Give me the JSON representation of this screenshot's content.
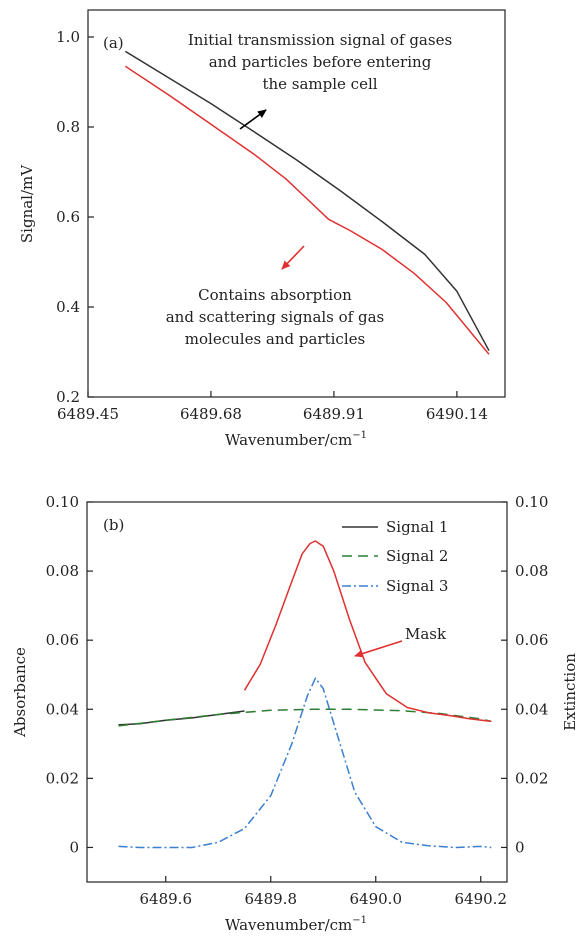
{
  "chart_data": [
    {
      "type": "line",
      "panel_label": "(a)",
      "xlabel": "Wavenumber/cm",
      "xlabel_sup": "−1",
      "ylabel": "Signal/mV",
      "xlim": [
        6489.45,
        6490.23
      ],
      "ylim": [
        0.2,
        1.06
      ],
      "x_ticks": [
        6489.45,
        6489.68,
        6489.91,
        6490.14
      ],
      "x_tick_labels": [
        "6489.45",
        "6489.68",
        "6489.91",
        "6490.14"
      ],
      "y_ticks": [
        0.2,
        0.4,
        0.6,
        0.8,
        1.0
      ],
      "y_tick_labels": [
        "0.2",
        "0.4",
        "0.6",
        "0.8",
        "1.0"
      ],
      "grid": false,
      "series": [
        {
          "color": "#333333",
          "x": [
            6489.52,
            6489.6,
            6489.68,
            6489.76,
            6489.84,
            6489.92,
            6490.0,
            6490.08,
            6490.14,
            6490.2
          ],
          "y": [
            0.968,
            0.91,
            0.852,
            0.79,
            0.727,
            0.66,
            0.59,
            0.517,
            0.435,
            0.303
          ]
        },
        {
          "color": "#e03030",
          "x": [
            6489.52,
            6489.6,
            6489.68,
            6489.76,
            6489.82,
            6489.86,
            6489.9,
            6489.94,
            6490.0,
            6490.06,
            6490.12,
            6490.2
          ],
          "y": [
            0.935,
            0.872,
            0.806,
            0.74,
            0.685,
            0.64,
            0.595,
            0.57,
            0.528,
            0.475,
            0.41,
            0.295
          ]
        }
      ],
      "annotations": [
        {
          "lines": [
            "Initial transmission signal of gases",
            "and particles before entering",
            "the sample cell"
          ],
          "arrow_color": "#000000"
        },
        {
          "lines": [
            "Contains absorption",
            "and scattering signals of gas",
            "molecules and particles"
          ],
          "arrow_color": "#e03030"
        }
      ]
    },
    {
      "type": "line",
      "panel_label": "(b)",
      "xlabel": "Wavenumber/cm",
      "xlabel_sup": "−1",
      "ylabel": "Absorbance",
      "y2label": "Extinction",
      "y2_color": "#2e8b2e",
      "xlim": [
        6489.45,
        6490.25
      ],
      "ylim": [
        -0.01,
        0.1
      ],
      "y2lim": [
        -0.01,
        0.1
      ],
      "x_ticks": [
        6489.6,
        6489.8,
        6490.0,
        6490.2
      ],
      "x_tick_labels": [
        "6489.6",
        "6489.8",
        "6490.0",
        "6490.2"
      ],
      "y_ticks": [
        0,
        0.02,
        0.04,
        0.06,
        0.08,
        0.1
      ],
      "y_tick_labels": [
        "0",
        "0.02",
        "0.04",
        "0.06",
        "0.08",
        "0.10"
      ],
      "y2_ticks": [
        0,
        0.02,
        0.04,
        0.06,
        0.08,
        0.1
      ],
      "y2_tick_labels": [
        "0",
        "0.02",
        "0.04",
        "0.06",
        "0.08",
        "0.10"
      ],
      "grid": false,
      "legend": [
        "Signal 1",
        "Signal 2",
        "Signal 3"
      ],
      "legend_placement": "top-right",
      "series": [
        {
          "name": "Signal 1",
          "color": "#333333",
          "dash": "",
          "x": [
            6489.51,
            6489.55,
            6489.6,
            6489.65,
            6489.7,
            6489.75
          ],
          "y": [
            0.0355,
            0.0358,
            0.0368,
            0.0375,
            0.0385,
            0.0395
          ]
        },
        {
          "name": "Signal 2",
          "color": "#2e7d32",
          "dash": "10,6",
          "x": [
            6489.51,
            6489.6,
            6489.7,
            6489.8,
            6489.88,
            6489.95,
            6490.05,
            6490.12,
            6490.2,
            6490.22
          ],
          "y": [
            0.0352,
            0.0368,
            0.0385,
            0.0397,
            0.04,
            0.04,
            0.0396,
            0.0388,
            0.0372,
            0.0365
          ]
        },
        {
          "name": "Signal 3",
          "color": "#3a7fd0",
          "dash": "9,3,2,3",
          "x": [
            6489.51,
            6489.55,
            6489.6,
            6489.65,
            6489.7,
            6489.75,
            6489.8,
            6489.84,
            6489.87,
            6489.885,
            6489.9,
            6489.93,
            6489.96,
            6490.0,
            6490.05,
            6490.1,
            6490.15,
            6490.2,
            6490.22
          ],
          "y": [
            0.0003,
            0.0,
            0.0,
            0.0,
            0.0015,
            0.0055,
            0.015,
            0.03,
            0.044,
            0.049,
            0.046,
            0.031,
            0.016,
            0.006,
            0.0015,
            0.0005,
            0.0,
            0.0003,
            0.0
          ]
        },
        {
          "name": "Mask",
          "color": "#e03030",
          "dash": "",
          "x": [
            6489.75,
            6489.78,
            6489.81,
            6489.84,
            6489.86,
            6489.875,
            6489.885,
            6489.9,
            6489.92,
            6489.95,
            6489.98,
            6490.02,
            6490.06,
            6490.1,
            6490.14,
            6490.18,
            6490.22
          ],
          "y": [
            0.0455,
            0.053,
            0.0645,
            0.077,
            0.085,
            0.088,
            0.0887,
            0.0872,
            0.08,
            0.066,
            0.0535,
            0.0445,
            0.0405,
            0.039,
            0.0382,
            0.0372,
            0.0365
          ]
        }
      ],
      "annotations": [
        {
          "lines": [
            "Mask"
          ],
          "color": "#e03030",
          "arrow_color": "#e03030"
        }
      ]
    }
  ]
}
